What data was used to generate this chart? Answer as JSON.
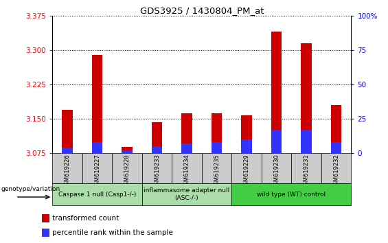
{
  "title": "GDS3925 / 1430804_PM_at",
  "samples": [
    "GSM619226",
    "GSM619227",
    "GSM619228",
    "GSM619233",
    "GSM619234",
    "GSM619235",
    "GSM619229",
    "GSM619230",
    "GSM619231",
    "GSM619232"
  ],
  "transformed_counts": [
    3.17,
    3.29,
    3.088,
    3.143,
    3.162,
    3.162,
    3.158,
    3.34,
    3.315,
    3.18
  ],
  "percentile_ranks": [
    4,
    8,
    2,
    5,
    7,
    8,
    10,
    17,
    17,
    8
  ],
  "ylim_left": [
    3.075,
    3.375
  ],
  "ylim_right": [
    0,
    100
  ],
  "yticks_left": [
    3.075,
    3.15,
    3.225,
    3.3,
    3.375
  ],
  "yticks_right": [
    0,
    25,
    50,
    75,
    100
  ],
  "groups": [
    {
      "label": "Caspase 1 null (Casp1-/-)",
      "start": 0,
      "end": 2,
      "color": "#aaddaa"
    },
    {
      "label": "inflammasome adapter null\n(ASC-/-)",
      "start": 3,
      "end": 5,
      "color": "#aaddaa"
    },
    {
      "label": "wild type (WT) control",
      "start": 6,
      "end": 9,
      "color": "#44cc44"
    }
  ],
  "bar_color_red": "#CC0000",
  "bar_color_blue": "#3333FF",
  "bar_width": 0.35,
  "genotype_label": "genotype/variation",
  "legend_items": [
    {
      "color": "#CC0000",
      "label": "transformed count"
    },
    {
      "color": "#3333FF",
      "label": "percentile rank within the sample"
    }
  ],
  "grid_linestyle": ":"
}
